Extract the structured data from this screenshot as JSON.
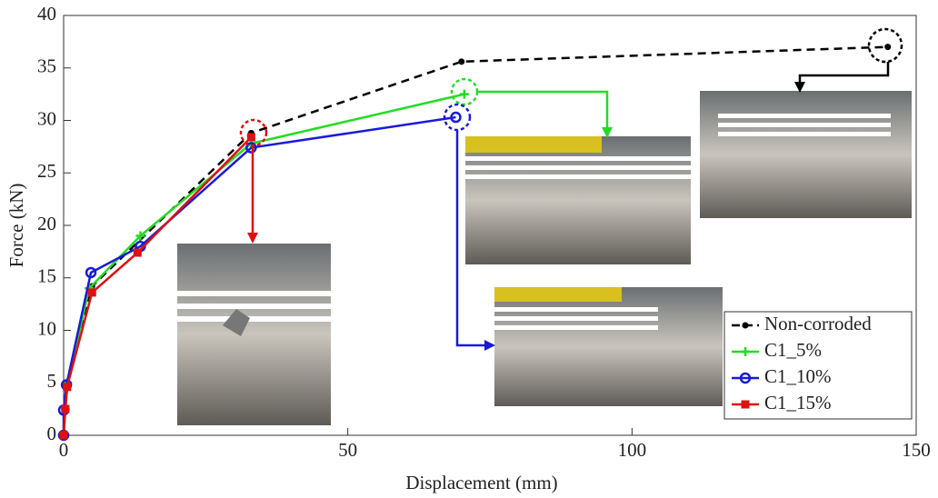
{
  "chart_data": {
    "type": "line",
    "xlabel": "Displacement (mm)",
    "ylabel": "Force (kN)",
    "xlim": [
      0,
      150
    ],
    "ylim": [
      0,
      40
    ],
    "xticks": [
      0,
      50,
      100,
      150
    ],
    "yticks": [
      0,
      5,
      10,
      15,
      20,
      25,
      30,
      35,
      40
    ],
    "grid": false,
    "legend": "lower right",
    "series": [
      {
        "name": "Non-corroded",
        "color": "#000000",
        "dash": true,
        "marker": "dot",
        "x": [
          0,
          0.3,
          0.7,
          5,
          33,
          70,
          145
        ],
        "values": [
          0,
          2.5,
          5,
          14.2,
          28.8,
          35.6,
          37
        ]
      },
      {
        "name": "C1_5%",
        "color": "#22dd22",
        "dash": false,
        "marker": "plus",
        "x": [
          0,
          0.3,
          0.7,
          4.5,
          13.5,
          33,
          70.5
        ],
        "values": [
          0,
          2.5,
          5,
          14,
          19,
          27.8,
          32.5
        ]
      },
      {
        "name": "C1_10%",
        "color": "#1a1adb",
        "dash": false,
        "marker": "circle",
        "x": [
          0,
          0,
          0.5,
          4.8,
          13.5,
          33,
          69
        ],
        "values": [
          0,
          2.4,
          4.8,
          15.5,
          18,
          27.4,
          30.3
        ]
      },
      {
        "name": "C1_15%",
        "color": "#e01010",
        "dash": false,
        "marker": "square",
        "x": [
          0,
          0.3,
          0.6,
          5,
          13,
          33
        ],
        "values": [
          0,
          2.5,
          4.6,
          13.6,
          17.4,
          28.4
        ]
      }
    ]
  }
}
